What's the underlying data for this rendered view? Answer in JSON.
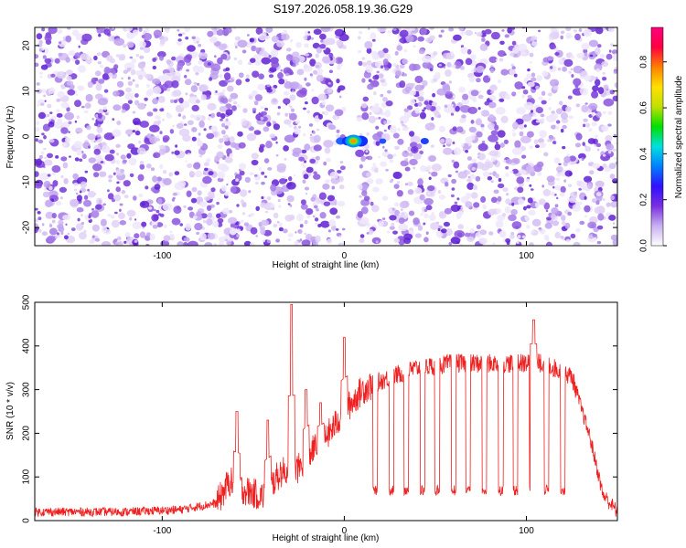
{
  "title": "S197.2026.058.19.36.G29",
  "chart_data": [
    {
      "type": "heatmap",
      "xlabel": "Height of straight line (km)",
      "ylabel": "Frequency (Hz)",
      "xlim": [
        -170,
        150
      ],
      "ylim": [
        -24,
        24
      ],
      "x_ticks": [
        -100,
        0,
        100
      ],
      "y_ticks": [
        -20,
        -10,
        0,
        10,
        20
      ],
      "colorbar": {
        "label": "Normalized spectral amplitude",
        "range": [
          0,
          0.95
        ],
        "ticks": [
          0.0,
          0.2,
          0.4,
          0.6,
          0.8
        ],
        "colors": [
          "#ffffff",
          "#c8b0f0",
          "#7a2ee0",
          "#3010ff",
          "#0080ff",
          "#00e0e0",
          "#00e000",
          "#c0e000",
          "#ffe000",
          "#ff8000",
          "#ff0040",
          "#ff0080"
        ]
      },
      "peak": {
        "x": 5,
        "y": -1,
        "value": 0.7
      },
      "gap_x": [
        0,
        8
      ]
    },
    {
      "type": "line",
      "xlabel": "Height of straight line (km)",
      "ylabel": "SNR (10 * v/v)",
      "xlim": [
        -170,
        150
      ],
      "ylim": [
        0,
        500
      ],
      "x_ticks": [
        -100,
        0,
        100
      ],
      "y_ticks": [
        0,
        100,
        200,
        300,
        400,
        500
      ],
      "color": "#ee2020",
      "profile": [
        [
          -170,
          20
        ],
        [
          -120,
          20
        ],
        [
          -90,
          25
        ],
        [
          -70,
          40
        ],
        [
          -63,
          90
        ],
        [
          -55,
          70
        ],
        [
          -45,
          55
        ],
        [
          -35,
          110
        ],
        [
          -25,
          120
        ],
        [
          -20,
          150
        ],
        [
          -10,
          190
        ],
        [
          0,
          250
        ],
        [
          10,
          300
        ],
        [
          20,
          320
        ],
        [
          40,
          350
        ],
        [
          60,
          360
        ],
        [
          90,
          360
        ],
        [
          110,
          360
        ],
        [
          125,
          330
        ],
        [
          135,
          190
        ],
        [
          142,
          60
        ],
        [
          150,
          20
        ]
      ],
      "spikes": [
        [
          -59,
          250
        ],
        [
          -42,
          230
        ],
        [
          -29,
          495
        ],
        [
          -21,
          300
        ],
        [
          -13,
          270
        ],
        [
          0,
          420
        ],
        [
          104,
          460
        ]
      ],
      "drops": [
        17,
        26,
        34,
        43,
        51,
        60,
        68,
        77,
        86,
        94,
        103,
        111,
        120
      ],
      "drop_level": 70
    }
  ]
}
